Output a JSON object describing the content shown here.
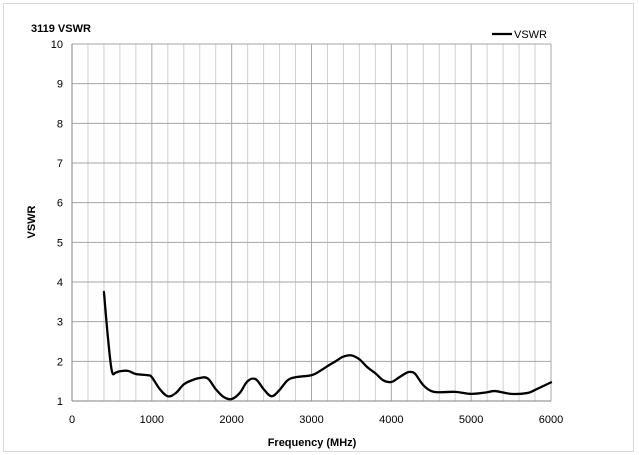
{
  "chart_data": {
    "type": "line",
    "title": "3119 VSWR",
    "xlabel": "Frequency (MHz)",
    "ylabel": "VSWR",
    "xlim": [
      0,
      6000
    ],
    "ylim": [
      1,
      10
    ],
    "xticks": [
      0,
      1000,
      2000,
      3000,
      4000,
      5000,
      6000
    ],
    "yticks": [
      1,
      2,
      3,
      4,
      5,
      6,
      7,
      8,
      9,
      10
    ],
    "grid": true,
    "legend_position": "top-right",
    "series": [
      {
        "name": "VSWR",
        "color": "#000000",
        "x": [
          400,
          450,
          500,
          550,
          600,
          700,
          800,
          950,
          1000,
          1100,
          1200,
          1300,
          1400,
          1500,
          1600,
          1700,
          1800,
          1900,
          2000,
          2100,
          2200,
          2300,
          2400,
          2500,
          2600,
          2700,
          2800,
          3000,
          3100,
          3200,
          3300,
          3400,
          3500,
          3600,
          3700,
          3800,
          3900,
          4000,
          4100,
          4200,
          4250,
          4300,
          4400,
          4500,
          4600,
          4800,
          5000,
          5200,
          5300,
          5500,
          5700,
          5800,
          6000
        ],
        "values": [
          3.75,
          2.6,
          1.75,
          1.72,
          1.75,
          1.76,
          1.68,
          1.65,
          1.6,
          1.3,
          1.12,
          1.2,
          1.42,
          1.52,
          1.58,
          1.57,
          1.3,
          1.1,
          1.05,
          1.2,
          1.5,
          1.55,
          1.3,
          1.12,
          1.28,
          1.52,
          1.6,
          1.65,
          1.75,
          1.88,
          2.0,
          2.12,
          2.15,
          2.05,
          1.85,
          1.7,
          1.52,
          1.48,
          1.6,
          1.72,
          1.73,
          1.68,
          1.4,
          1.25,
          1.22,
          1.23,
          1.18,
          1.22,
          1.25,
          1.18,
          1.2,
          1.28,
          1.47
        ]
      }
    ]
  }
}
